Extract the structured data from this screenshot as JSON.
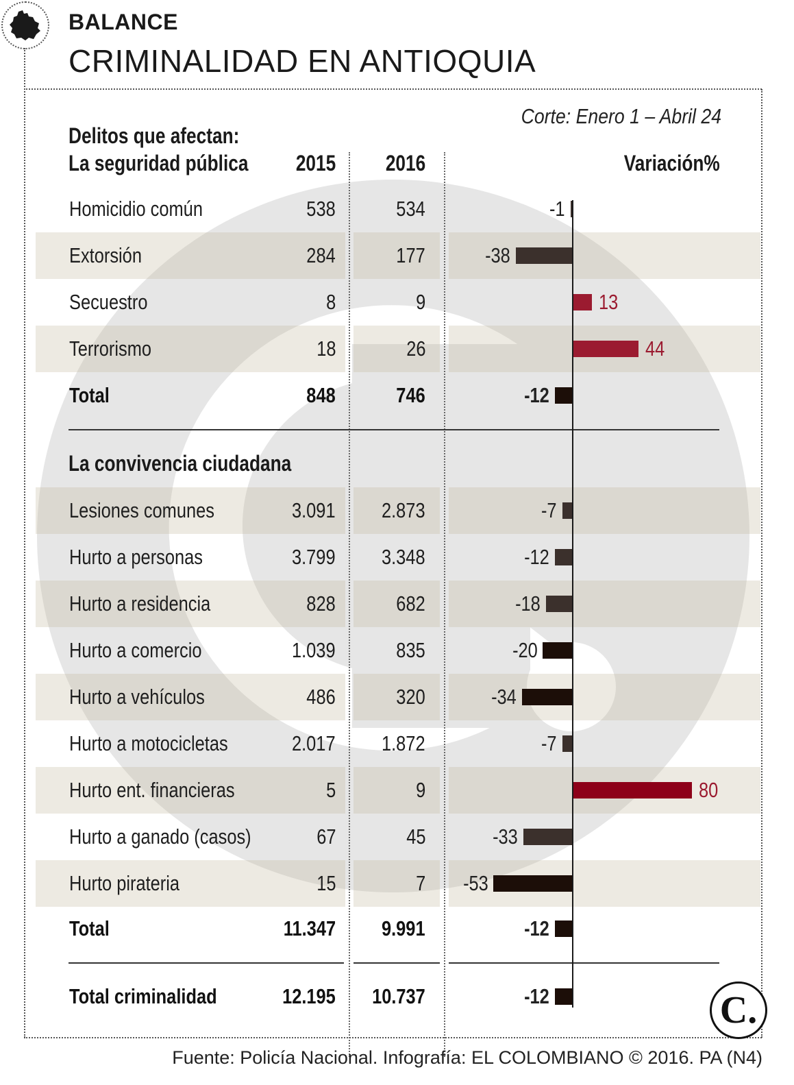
{
  "header": {
    "kicker": "BALANCE",
    "title": "CRIMINALIDAD EN ANTIOQUIA",
    "corte": "Corte: Enero 1 – Abril 24"
  },
  "columns": {
    "group_label": "Delitos que afectan:",
    "section1": "La seguridad pública",
    "y2015": "2015",
    "y2016": "2016",
    "variation": "Variación%"
  },
  "section2_title": "La convivencia ciudadana",
  "footer": "Fuente: Policía Nacional. Infografía: EL COLOMBIANO © 2016. PA (N4)",
  "logo_letter": "C.",
  "colors": {
    "negative_bar": "#3b302c",
    "negative_bar_strong": "#1c0e08",
    "positive_bar": "#9b1b30",
    "positive_bar_strong": "#8d0019",
    "stripe": "#e9e5d9"
  },
  "icons": [
    "antioquia-map-icon",
    "el-colombiano-logo-icon"
  ],
  "chart_data": {
    "type": "table",
    "value_axis": {
      "min": -53,
      "max": 80
    },
    "section1": {
      "title": "La seguridad pública",
      "rows": [
        {
          "label": "Homicidio común",
          "v2015": "538",
          "v2016": "534",
          "variation": -1
        },
        {
          "label": "Extorsión",
          "v2015": "284",
          "v2016": "177",
          "variation": -38
        },
        {
          "label": "Secuestro",
          "v2015": "8",
          "v2016": "9",
          "variation": 13
        },
        {
          "label": "Terrorismo",
          "v2015": "18",
          "v2016": "26",
          "variation": 44
        }
      ],
      "total": {
        "label": "Total",
        "v2015": "848",
        "v2016": "746",
        "variation": -12
      }
    },
    "section2": {
      "title": "La convivencia ciudadana",
      "rows": [
        {
          "label": "Lesiones comunes",
          "v2015": "3.091",
          "v2016": "2.873",
          "variation": -7
        },
        {
          "label": "Hurto a personas",
          "v2015": "3.799",
          "v2016": "3.348",
          "variation": -12
        },
        {
          "label": "Hurto a residencia",
          "v2015": "828",
          "v2016": "682",
          "variation": -18
        },
        {
          "label": "Hurto a comercio",
          "v2015": "1.039",
          "v2016": "835",
          "variation": -20
        },
        {
          "label": "Hurto a vehículos",
          "v2015": "486",
          "v2016": "320",
          "variation": -34
        },
        {
          "label": "Hurto a motocicletas",
          "v2015": "2.017",
          "v2016": "1.872",
          "variation": -7
        },
        {
          "label": "Hurto ent. financieras",
          "v2015": "5",
          "v2016": "9",
          "variation": 80
        },
        {
          "label": "Hurto a ganado (casos)",
          "v2015": "67",
          "v2016": "45",
          "variation": -33
        },
        {
          "label": "Hurto pirateria",
          "v2015": "15",
          "v2016": "7",
          "variation": -53
        }
      ],
      "total": {
        "label": "Total",
        "v2015": "11.347",
        "v2016": "9.991",
        "variation": -12
      }
    },
    "grand_total": {
      "label": "Total criminalidad",
      "v2015": "12.195",
      "v2016": "10.737",
      "variation": -12
    }
  }
}
